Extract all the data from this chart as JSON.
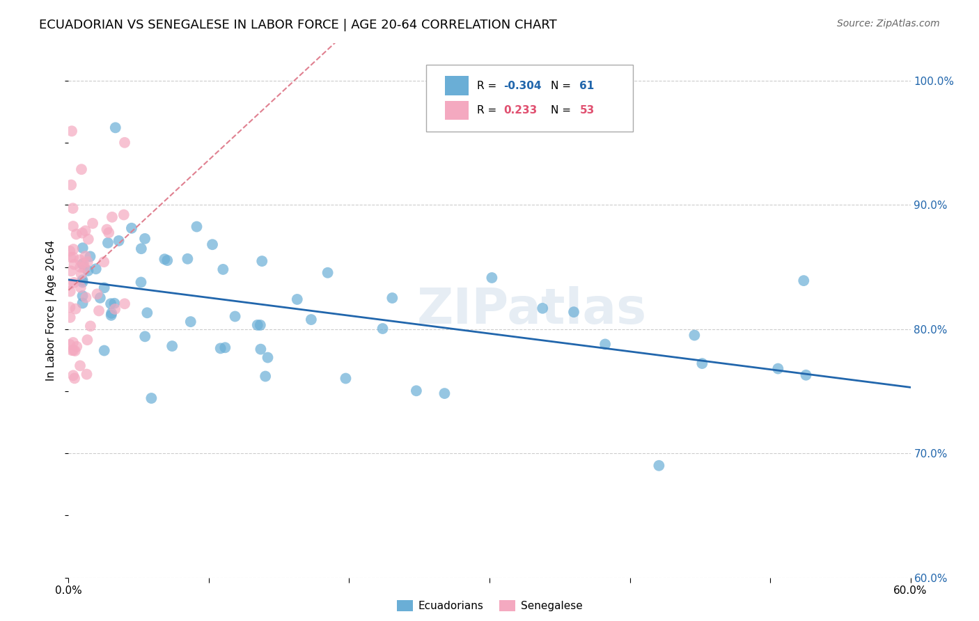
{
  "title": "ECUADORIAN VS SENEGALESE IN LABOR FORCE | AGE 20-64 CORRELATION CHART",
  "source": "Source: ZipAtlas.com",
  "ylabel": "In Labor Force | Age 20-64",
  "xlim": [
    0.0,
    0.6
  ],
  "ylim": [
    0.6,
    1.03
  ],
  "ytick_positions": [
    0.6,
    0.7,
    0.8,
    0.9,
    1.0
  ],
  "ytick_labels": [
    "60.0%",
    "70.0%",
    "80.0%",
    "90.0%",
    "100.0%"
  ],
  "watermark": "ZIPatlas",
  "legend_R_blue": "-0.304",
  "legend_N_blue": "61",
  "legend_R_pink": "0.233",
  "legend_N_pink": "53",
  "blue_color": "#6aaed6",
  "pink_color": "#f4a9c0",
  "blue_line_color": "#2166ac",
  "pink_line_color": "#e08090",
  "grid_color": "#cccccc",
  "background_color": "#ffffff"
}
